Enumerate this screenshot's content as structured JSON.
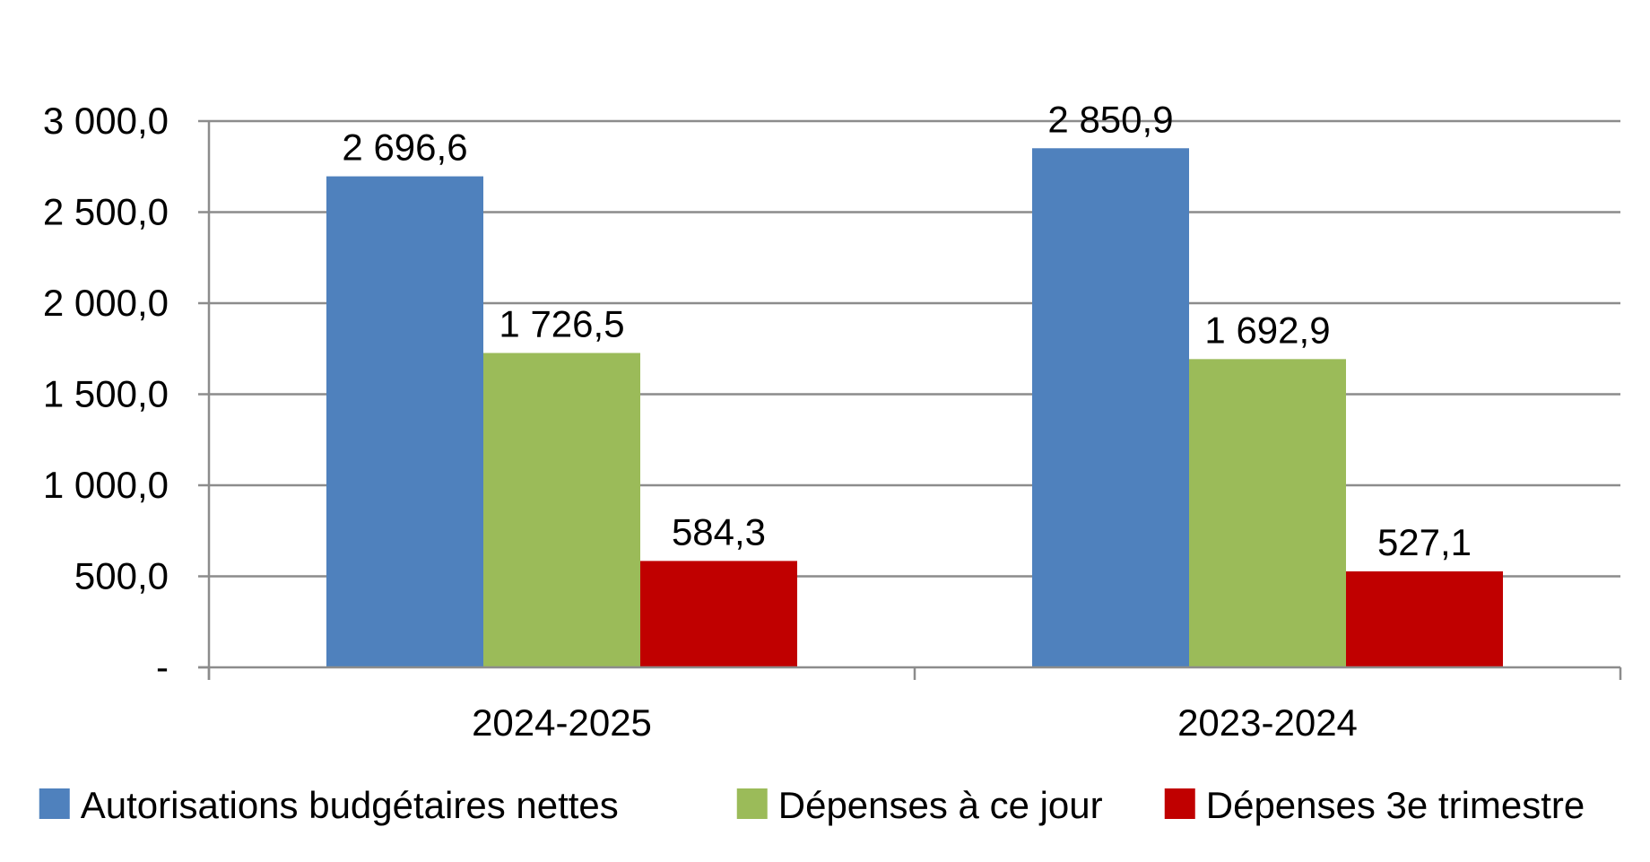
{
  "chart_data": {
    "type": "bar",
    "categories": [
      "2024-2025",
      "2023-2024"
    ],
    "series": [
      {
        "name": "Autorisations budgétaires nettes",
        "color": "#4F81BD",
        "values": [
          2696.6,
          2850.9
        ],
        "labels": [
          "2 696,6",
          "2 850,9"
        ]
      },
      {
        "name": "Dépenses à ce jour",
        "color": "#9BBB59",
        "values": [
          1726.5,
          1692.9
        ],
        "labels": [
          "1 726,5",
          "1 692,9"
        ]
      },
      {
        "name": "Dépenses 3e trimestre",
        "color": "#C00000",
        "values": [
          584.3,
          527.1
        ],
        "labels": [
          "584,3",
          "527,1"
        ]
      }
    ],
    "ylim": [
      0,
      3000
    ],
    "yticks": [
      0,
      500,
      1000,
      1500,
      2000,
      2500,
      3000
    ],
    "ytick_labels": [
      "-",
      "500,0",
      "1 000,0",
      "1 500,0",
      "2 000,0",
      "2 500,0",
      "3 000,0"
    ],
    "grid": true,
    "legend_position": "bottom",
    "gridline_color": "#8C8C8C",
    "axis_color": "#8C8C8C"
  }
}
